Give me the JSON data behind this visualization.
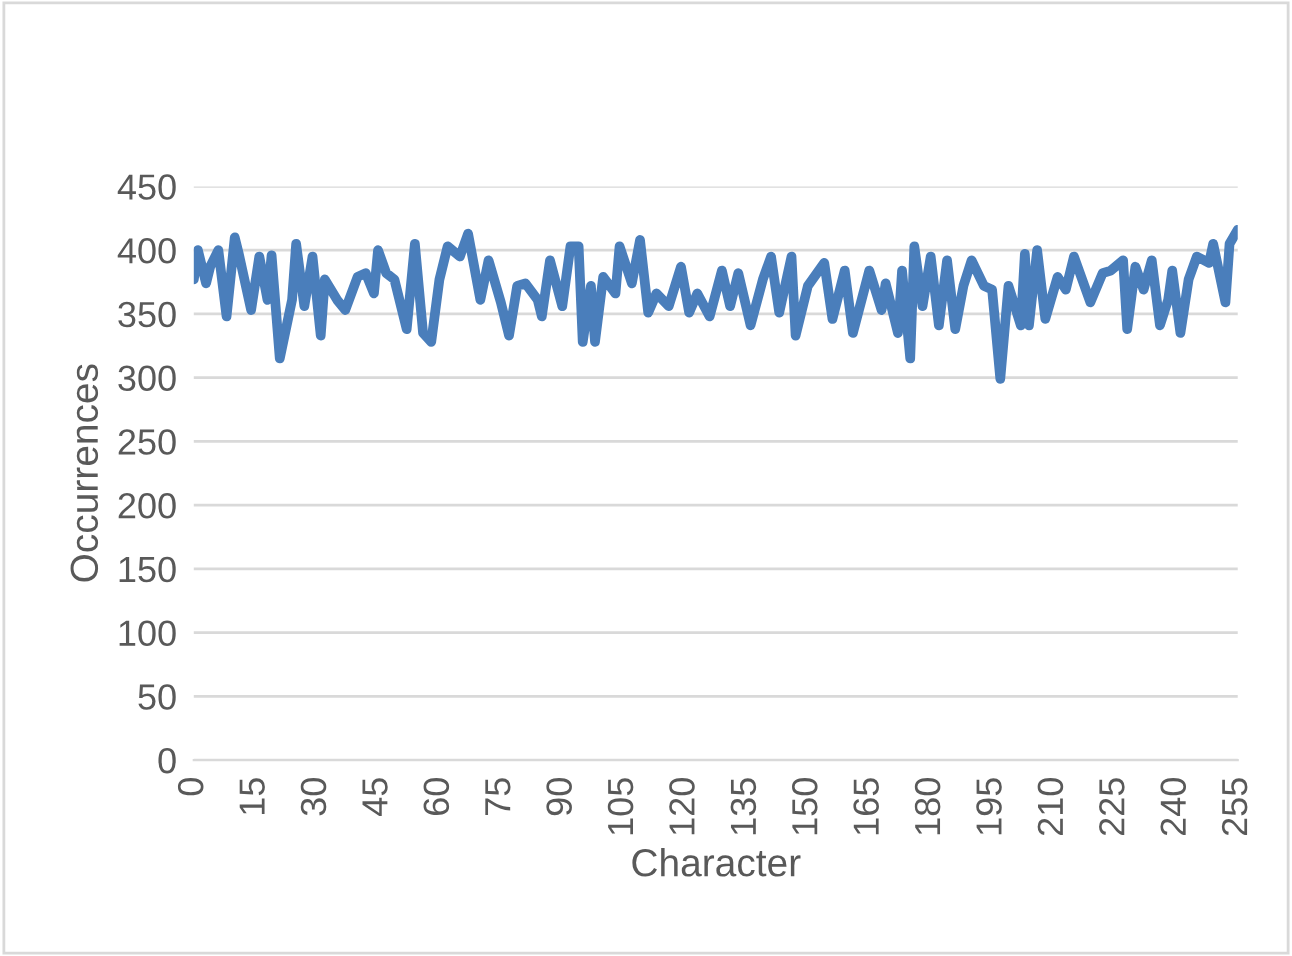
{
  "chart_data": {
    "type": "line",
    "xlabel": "Character",
    "ylabel": "Occurrences",
    "x": [
      0,
      1,
      3,
      4,
      6,
      8,
      10,
      11,
      14,
      16,
      18,
      19,
      21,
      24,
      25,
      27,
      29,
      31,
      32,
      35,
      37,
      40,
      42,
      44,
      45,
      47,
      49,
      52,
      54,
      56,
      58,
      60,
      62,
      65,
      67,
      70,
      72,
      75,
      77,
      79,
      81,
      84,
      85,
      87,
      90,
      92,
      94,
      95,
      97,
      98,
      100,
      103,
      104,
      107,
      109,
      111,
      113,
      116,
      119,
      121,
      123,
      126,
      129,
      131,
      133,
      136,
      139,
      141,
      143,
      146,
      147,
      150,
      154,
      156,
      159,
      161,
      165,
      168,
      169,
      172,
      173,
      175,
      176,
      178,
      180,
      182,
      184,
      186,
      188,
      190,
      193,
      195,
      197,
      199,
      202,
      203,
      204,
      206,
      208,
      211,
      213,
      215,
      219,
      222,
      224,
      227,
      228,
      230,
      232,
      234,
      236,
      238,
      239,
      241,
      243,
      245,
      248,
      249,
      252,
      253,
      255
    ],
    "series": [
      {
        "color": "#4a7ebb",
        "values": [
          377,
          400,
          374,
          387,
          400,
          348,
          410,
          397,
          353,
          395,
          361,
          396,
          315,
          361,
          405,
          356,
          395,
          333,
          377,
          361,
          353,
          379,
          382,
          366,
          400,
          382,
          377,
          338,
          405,
          335,
          328,
          377,
          403,
          395,
          413,
          361,
          392,
          359,
          333,
          372,
          374,
          361,
          348,
          392,
          356,
          403,
          403,
          328,
          372,
          328,
          379,
          366,
          403,
          374,
          408,
          351,
          366,
          356,
          387,
          351,
          366,
          348,
          384,
          356,
          382,
          341,
          377,
          395,
          351,
          395,
          333,
          372,
          390,
          346,
          384,
          335,
          384,
          353,
          374,
          335,
          384,
          315,
          403,
          356,
          395,
          341,
          392,
          338,
          372,
          392,
          372,
          369,
          299,
          372,
          341,
          397,
          341,
          400,
          346,
          379,
          369,
          395,
          359,
          382,
          384,
          392,
          338,
          387,
          369,
          392,
          341,
          361,
          384,
          335,
          377,
          395,
          390,
          405,
          359,
          405,
          416
        ]
      }
    ],
    "xlim": [
      0,
      255
    ],
    "xticks": [
      0,
      15,
      30,
      45,
      60,
      75,
      90,
      105,
      120,
      135,
      150,
      165,
      180,
      195,
      210,
      225,
      240,
      255
    ],
    "ylim": [
      0,
      450
    ],
    "yticks": [
      0,
      50,
      100,
      150,
      200,
      250,
      300,
      350,
      400,
      450
    ],
    "grid": "y",
    "marker": "none",
    "line_style": "solid",
    "legend": false
  }
}
